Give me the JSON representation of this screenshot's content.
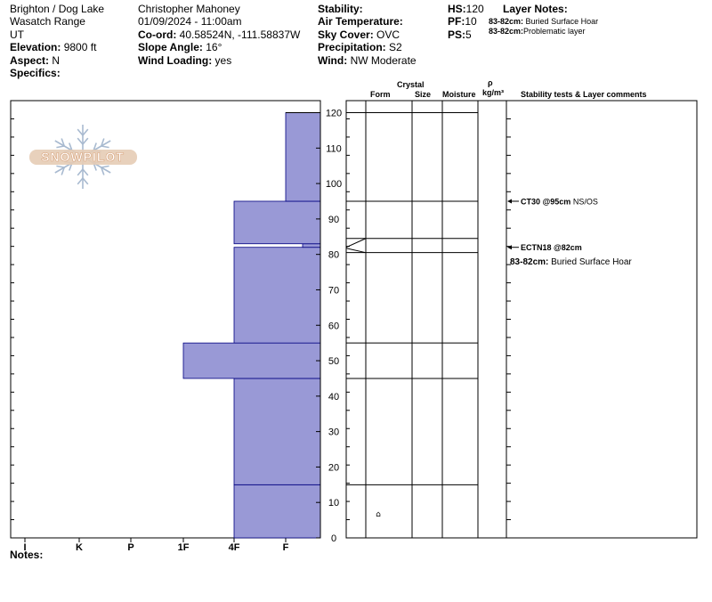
{
  "header": {
    "location": "Brighton / Dog Lake",
    "range": "Wasatch Range",
    "state": "UT",
    "elevation_label": "Elevation:",
    "elevation_value": "9800 ft",
    "aspect_label": "Aspect:",
    "aspect_value": "N",
    "specifics_label": "Specifics:",
    "observer": "Christopher Mahoney",
    "datetime": "01/09/2024 - 11:00am",
    "coord_label": "Co-ord:",
    "coord_value": "40.58524N, -111.58837W",
    "slope_label": "Slope Angle:",
    "slope_value": "16°",
    "wind_loading_label": "Wind Loading:",
    "wind_loading_value": "yes",
    "stability_label": "Stability:",
    "stability_value": "",
    "air_temp_label": "Air Temperature:",
    "air_temp_value": "",
    "sky_label": "Sky Cover:",
    "sky_value": "OVC",
    "precip_label": "Precipitation:",
    "precip_value": "S2",
    "wind_label": "Wind:",
    "wind_value": "NW Moderate",
    "hs_label": "HS:",
    "hs_value": "120",
    "pf_label": "PF:",
    "pf_value": "10",
    "ps_label": "PS:",
    "ps_value": "5",
    "layer_notes_label": "Layer Notes:",
    "layer_notes": [
      {
        "range": "83-82cm:",
        "text": "Buried Surface Hoar"
      },
      {
        "range": "83-82cm:",
        "text": "Problematic layer"
      }
    ]
  },
  "logo": {
    "text": "SNOWPILOT"
  },
  "columns": {
    "form": "Form",
    "crystal": "Crystal",
    "size": "Size",
    "moisture": "Moisture",
    "rho": "ρ",
    "density_unit": "kg/m³",
    "stability": "Stability tests & Layer comments"
  },
  "footer": {
    "notes_label": "Notes:"
  },
  "chart_data": {
    "type": "bar",
    "orientation": "horizontal",
    "ylabel": "",
    "ylim": [
      0,
      120
    ],
    "yticks": [
      0,
      10,
      20,
      30,
      40,
      50,
      60,
      70,
      80,
      90,
      100,
      110,
      120
    ],
    "hardness_scale": [
      "I",
      "K",
      "P",
      "1F",
      "4F",
      "F"
    ],
    "fill_color": "#9999d6",
    "edge_color": "#000080",
    "layers": [
      {
        "bottom": 0,
        "top": 15,
        "hardness": "4F"
      },
      {
        "bottom": 15,
        "top": 45,
        "hardness": "4F"
      },
      {
        "bottom": 45,
        "top": 55,
        "hardness": "1F"
      },
      {
        "bottom": 55,
        "top": 82,
        "hardness": "4F"
      },
      {
        "bottom": 82,
        "top": 83,
        "hardness": "F-"
      },
      {
        "bottom": 83,
        "top": 95,
        "hardness": "4F"
      },
      {
        "bottom": 95,
        "top": 120,
        "hardness": "F"
      }
    ],
    "layer_boundaries": [
      15,
      45,
      55,
      80.5,
      84.5,
      95,
      120
    ],
    "grain_symbols": [
      {
        "height": 7,
        "symbol": "⌂"
      }
    ],
    "stability_tests": [
      {
        "height": 95,
        "code": "CT30 @95cm",
        "result": "NS/OS"
      },
      {
        "height": 82,
        "code": "ECTN18 @82cm",
        "result": ""
      }
    ],
    "layer_comments": [
      {
        "range": "83-82cm:",
        "text": "Buried Surface Hoar"
      }
    ]
  }
}
